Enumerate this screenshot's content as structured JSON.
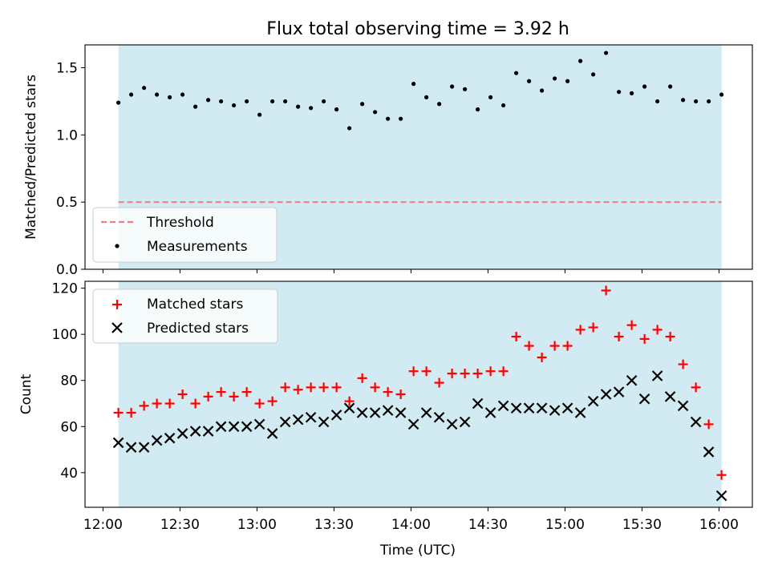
{
  "title": "Flux total observing time = 3.92 h",
  "xlabel": "Time (UTC)",
  "colors": {
    "shade": "#add8e6",
    "threshold": "#f08080",
    "measurement": "#000000",
    "matched": "#ff0000",
    "predicted": "#000000"
  },
  "chart_data": [
    {
      "type": "scatter",
      "ylabel": "Matched/Predicted stars",
      "ylim": [
        0,
        1.67
      ],
      "yticks": [
        0.0,
        0.5,
        1.0,
        1.5
      ],
      "ytick_labels": [
        "0.0",
        "0.5",
        "1.0",
        "1.5"
      ],
      "xticks": [
        "12:00",
        "12:30",
        "13:00",
        "13:30",
        "14:00",
        "14:30",
        "15:00",
        "15:30",
        "16:00"
      ],
      "xlim": [
        "11:53",
        "16:13"
      ],
      "shaded_interval": [
        "12:06",
        "16:01"
      ],
      "threshold": 0.5,
      "legend_position": "lower left",
      "legend": {
        "threshold": "Threshold",
        "measurements": "Measurements"
      },
      "series": [
        {
          "name": "Measurements",
          "x": [
            "12:06",
            "12:11",
            "12:16",
            "12:21",
            "12:26",
            "12:31",
            "12:36",
            "12:41",
            "12:46",
            "12:51",
            "12:56",
            "13:01",
            "13:06",
            "13:11",
            "13:16",
            "13:21",
            "13:26",
            "13:31",
            "13:36",
            "13:41",
            "13:46",
            "13:51",
            "13:56",
            "14:01",
            "14:06",
            "14:11",
            "14:16",
            "14:21",
            "14:26",
            "14:31",
            "14:36",
            "14:41",
            "14:46",
            "14:51",
            "14:56",
            "15:01",
            "15:06",
            "15:11",
            "15:16",
            "15:21",
            "15:26",
            "15:31",
            "15:36",
            "15:41",
            "15:46",
            "15:51",
            "15:56",
            "16:01"
          ],
          "y": [
            1.24,
            1.3,
            1.35,
            1.3,
            1.28,
            1.3,
            1.21,
            1.26,
            1.25,
            1.22,
            1.25,
            1.15,
            1.25,
            1.25,
            1.21,
            1.2,
            1.25,
            1.19,
            1.05,
            1.23,
            1.17,
            1.12,
            1.12,
            1.38,
            1.28,
            1.23,
            1.36,
            1.34,
            1.19,
            1.28,
            1.22,
            1.46,
            1.4,
            1.33,
            1.42,
            1.4,
            1.55,
            1.45,
            1.61,
            1.32,
            1.31,
            1.36,
            1.25,
            1.36,
            1.26,
            1.25,
            1.25,
            1.3
          ]
        }
      ]
    },
    {
      "type": "scatter",
      "ylabel": "Count",
      "xlabel": "Time (UTC)",
      "ylim": [
        25,
        123
      ],
      "yticks": [
        40,
        60,
        80,
        100,
        120
      ],
      "ytick_labels": [
        "40",
        "60",
        "80",
        "100",
        "120"
      ],
      "xticks": [
        "12:00",
        "12:30",
        "13:00",
        "13:30",
        "14:00",
        "14:30",
        "15:00",
        "15:30",
        "16:00"
      ],
      "xlim": [
        "11:53",
        "16:13"
      ],
      "shaded_interval": [
        "12:06",
        "16:01"
      ],
      "legend_position": "upper left",
      "series": [
        {
          "name": "Matched stars",
          "marker": "+",
          "x": [
            "12:06",
            "12:11",
            "12:16",
            "12:21",
            "12:26",
            "12:31",
            "12:36",
            "12:41",
            "12:46",
            "12:51",
            "12:56",
            "13:01",
            "13:06",
            "13:11",
            "13:16",
            "13:21",
            "13:26",
            "13:31",
            "13:36",
            "13:41",
            "13:46",
            "13:51",
            "13:56",
            "14:01",
            "14:06",
            "14:11",
            "14:16",
            "14:21",
            "14:26",
            "14:31",
            "14:36",
            "14:41",
            "14:46",
            "14:51",
            "14:56",
            "15:01",
            "15:06",
            "15:11",
            "15:16",
            "15:21",
            "15:26",
            "15:31",
            "15:36",
            "15:41",
            "15:46",
            "15:51",
            "15:56",
            "16:01"
          ],
          "y": [
            66,
            66,
            69,
            70,
            70,
            74,
            70,
            73,
            75,
            73,
            75,
            70,
            71,
            77,
            76,
            77,
            77,
            77,
            71,
            81,
            77,
            75,
            74,
            84,
            84,
            79,
            83,
            83,
            83,
            84,
            84,
            99,
            95,
            90,
            95,
            95,
            102,
            103,
            119,
            99,
            104,
            98,
            102,
            99,
            87,
            77,
            61,
            39
          ]
        },
        {
          "name": "Predicted stars",
          "marker": "x",
          "x": [
            "12:06",
            "12:11",
            "12:16",
            "12:21",
            "12:26",
            "12:31",
            "12:36",
            "12:41",
            "12:46",
            "12:51",
            "12:56",
            "13:01",
            "13:06",
            "13:11",
            "13:16",
            "13:21",
            "13:26",
            "13:31",
            "13:36",
            "13:41",
            "13:46",
            "13:51",
            "13:56",
            "14:01",
            "14:06",
            "14:11",
            "14:16",
            "14:21",
            "14:26",
            "14:31",
            "14:36",
            "14:41",
            "14:46",
            "14:51",
            "14:56",
            "15:01",
            "15:06",
            "15:11",
            "15:16",
            "15:21",
            "15:26",
            "15:31",
            "15:36",
            "15:41",
            "15:46",
            "15:51",
            "15:56",
            "16:01"
          ],
          "y": [
            53,
            51,
            51,
            54,
            55,
            57,
            58,
            58,
            60,
            60,
            60,
            61,
            57,
            62,
            63,
            64,
            62,
            65,
            68,
            66,
            66,
            67,
            66,
            61,
            66,
            64,
            61,
            62,
            70,
            66,
            69,
            68,
            68,
            68,
            67,
            68,
            66,
            71,
            74,
            75,
            80,
            72,
            82,
            73,
            69,
            62,
            49,
            30
          ]
        }
      ]
    }
  ]
}
